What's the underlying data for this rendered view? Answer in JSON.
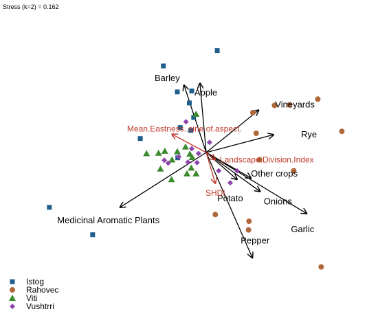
{
  "chart_data": {
    "type": "scatter",
    "title": "",
    "stress_text": "Stress (k=2) = 0.162",
    "xlabel": "",
    "ylabel": "",
    "xlim": [
      -3,
      3
    ],
    "ylim": [
      -2.5,
      2.5
    ],
    "colors": {
      "Istog": "#1f5f8b",
      "Rahovec": "#b0683a",
      "Viti": "#3b8a2e",
      "Vushtrri": "#8e44ad",
      "species_arrow": "#000000",
      "env_arrow": "#c0392b"
    },
    "legend": {
      "position": "bottom-left",
      "entries": [
        {
          "name": "Istog",
          "marker": "square"
        },
        {
          "name": "Rahovec",
          "marker": "circle"
        },
        {
          "name": "Viti",
          "marker": "triangle"
        },
        {
          "name": "Vushtrri",
          "marker": "diamond"
        }
      ]
    },
    "origin": [
      0,
      0
    ],
    "series": [
      {
        "name": "Istog",
        "marker": "square",
        "points": [
          [
            0.23,
            2.12
          ],
          [
            -0.89,
            1.8
          ],
          [
            -0.6,
            1.26
          ],
          [
            -0.3,
            1.28
          ],
          [
            -0.35,
            1.03
          ],
          [
            -0.26,
            0.73
          ],
          [
            -0.32,
            0.46
          ],
          [
            -0.54,
            0.52
          ],
          [
            -1.37,
            0.29
          ],
          [
            -0.59,
            -0.11
          ],
          [
            -3.26,
            -1.14
          ],
          [
            -2.36,
            -1.71
          ]
        ]
      },
      {
        "name": "Rahovec",
        "marker": "circle",
        "points": [
          [
            1.42,
            0.98
          ],
          [
            1.73,
            0.99
          ],
          [
            2.32,
            1.11
          ],
          [
            0.97,
            0.83
          ],
          [
            1.04,
            0.4
          ],
          [
            2.82,
            0.44
          ],
          [
            1.11,
            -0.15
          ],
          [
            1.82,
            -0.38
          ],
          [
            0.19,
            -1.29
          ],
          [
            0.88,
            -1.61
          ],
          [
            0.89,
            -1.43
          ],
          [
            2.39,
            -2.38
          ]
        ]
      },
      {
        "name": "Viti",
        "marker": "triangle",
        "points": [
          [
            -0.21,
            0.8
          ],
          [
            -1.24,
            -0.02
          ],
          [
            -0.99,
            -0.01
          ],
          [
            -0.86,
            0.03
          ],
          [
            -0.6,
            0.02
          ],
          [
            -0.71,
            -0.15
          ],
          [
            -0.34,
            -0.03
          ],
          [
            -0.43,
            0.12
          ],
          [
            -0.95,
            -0.34
          ],
          [
            -0.72,
            -0.56
          ],
          [
            -0.4,
            -0.44
          ],
          [
            -0.21,
            -0.44
          ],
          [
            -0.31,
            -0.32
          ],
          [
            -0.29,
            -0.1
          ]
        ]
      },
      {
        "name": "Vushtrri",
        "marker": "diamond",
        "points": [
          [
            -0.42,
            0.64
          ],
          [
            -0.57,
            -0.09
          ],
          [
            -0.3,
            0.08
          ],
          [
            -0.16,
            -0.02
          ],
          [
            -0.38,
            -0.2
          ],
          [
            -0.19,
            -0.21
          ],
          [
            0.07,
            0.21
          ],
          [
            -0.87,
            -0.16
          ],
          [
            -0.79,
            -0.22
          ],
          [
            0.26,
            -0.38
          ],
          [
            0.64,
            -0.38
          ],
          [
            0.5,
            -0.63
          ]
        ]
      }
    ],
    "species_vectors": [
      {
        "name": "Barley",
        "x": -0.46,
        "y": 1.4
      },
      {
        "name": "Apple",
        "x": -0.13,
        "y": 1.44
      },
      {
        "name": "Vineyards",
        "x": 1.09,
        "y": 0.88
      },
      {
        "name": "Rye",
        "x": 1.4,
        "y": 0.37
      },
      {
        "name": "Other crops",
        "x": 0.93,
        "y": -0.53
      },
      {
        "name": "Potato",
        "x": 0.64,
        "y": -0.56
      },
      {
        "name": "Onions",
        "x": 1.12,
        "y": -0.81
      },
      {
        "name": "Garlic",
        "x": 2.09,
        "y": -1.27
      },
      {
        "name": "Pepper",
        "x": 0.96,
        "y": -2.19
      },
      {
        "name": "Medicinal Aromatic Plants",
        "x": -1.79,
        "y": -1.14
      }
    ],
    "env_vectors": [
      {
        "name": "Mean.Eastness..sine.of.aspect.",
        "x": -0.71,
        "y": 0.38
      },
      {
        "name": "Landscape.Division.Index",
        "x": 0.19,
        "y": -0.15
      },
      {
        "name": "SHDI",
        "x": 0.19,
        "y": -0.64
      }
    ]
  }
}
